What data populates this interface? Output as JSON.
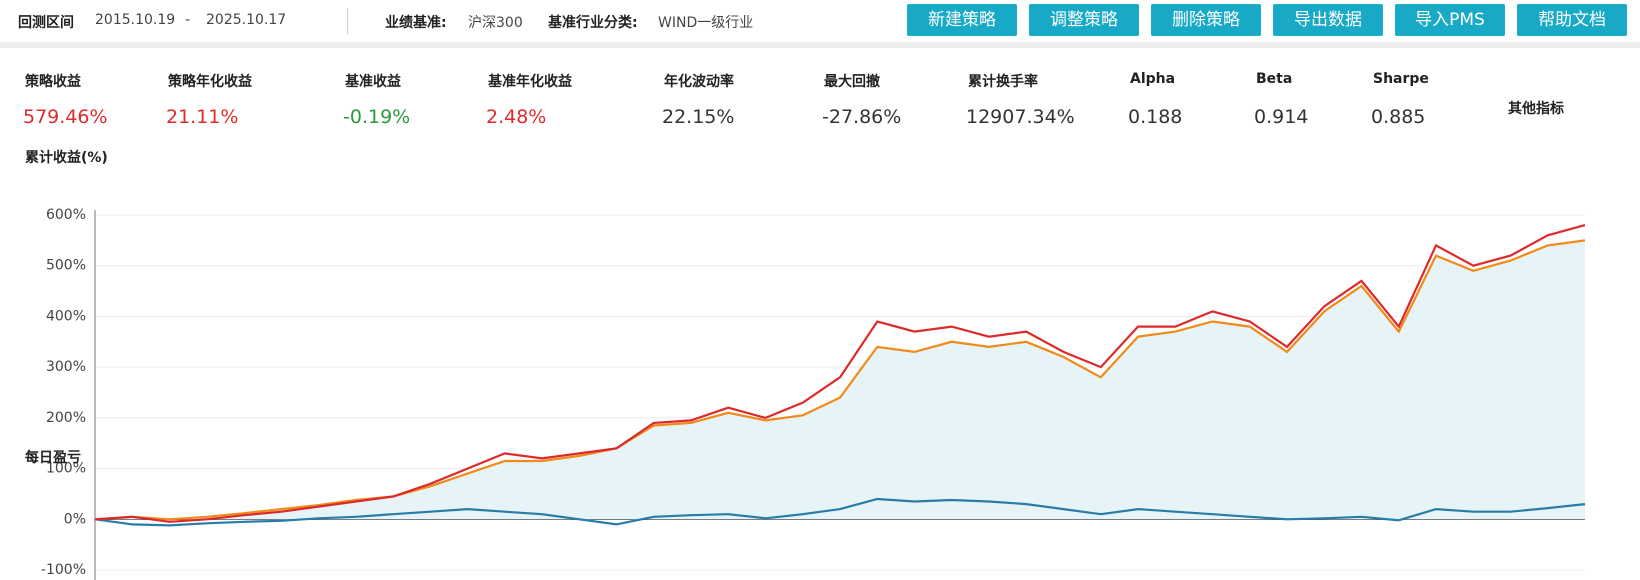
{
  "header": {
    "period_label": "回测区间",
    "start": "2015.10.19",
    "dash": "-",
    "end": "2025.10.17",
    "benchmark_label": "业绩基准:",
    "benchmark": "沪深300",
    "industry_label": "基准行业分类:",
    "industry": "WIND一级行业",
    "buttons": [
      "新建策略",
      "调整策略",
      "删除策略",
      "导出数据",
      "导入PMS",
      "帮助文档"
    ]
  },
  "metrics": [
    {
      "name": "策略收益",
      "value": "579.46%",
      "color": "#e02b2b"
    },
    {
      "name": "策略年化收益",
      "value": "21.11%",
      "color": "#e02b2b"
    },
    {
      "name": "基准收益",
      "value": "-0.19%",
      "color": "#2a9a3a"
    },
    {
      "name": "基准年化收益",
      "value": "2.48%",
      "color": "#e02b2b"
    },
    {
      "name": "年化波动率",
      "value": "22.15%",
      "color": "#333333"
    },
    {
      "name": "最大回撤",
      "value": "-27.86%",
      "color": "#333333"
    },
    {
      "name": "累计换手率",
      "value": "12907.34%",
      "color": "#333333"
    },
    {
      "name": "Alpha",
      "value": "0.188",
      "color": "#333333"
    },
    {
      "name": "Beta",
      "value": "0.914",
      "color": "#333333"
    },
    {
      "name": "Sharpe",
      "value": "0.885",
      "color": "#333333"
    }
  ],
  "other_metrics": "其他指标",
  "chart_data": {
    "type": "line",
    "title": "累计收益(%)",
    "annotation": "每日盈亏",
    "ylim": [
      -100,
      600
    ],
    "yticks": [
      {
        "value": -100,
        "label": "-100%"
      },
      {
        "value": 0,
        "label": "0%"
      },
      {
        "value": 100,
        "label": "100%"
      },
      {
        "value": 200,
        "label": "200%"
      },
      {
        "value": 300,
        "label": "300%"
      },
      {
        "value": 400,
        "label": "400%"
      },
      {
        "value": 500,
        "label": "500%"
      },
      {
        "value": 600,
        "label": "600%"
      }
    ],
    "grid": true,
    "series": [
      {
        "color": "#2a7ca8",
        "values": [
          0,
          -10,
          -12,
          -8,
          -5,
          -3,
          2,
          5,
          10,
          15,
          20,
          15,
          10,
          0,
          -10,
          5,
          8,
          10,
          2,
          10,
          20,
          40,
          35,
          38,
          35,
          30,
          20,
          10,
          20,
          15,
          10,
          5,
          0,
          2,
          5,
          -2,
          20,
          15,
          15,
          22,
          30
        ]
      },
      {
        "color": "#f28a1a",
        "fill": "#e6f3f7",
        "values": [
          0,
          5,
          0,
          5,
          12,
          20,
          28,
          38,
          45,
          65,
          90,
          115,
          115,
          125,
          140,
          185,
          190,
          210,
          195,
          205,
          240,
          340,
          330,
          350,
          340,
          350,
          320,
          280,
          360,
          370,
          390,
          380,
          330,
          410,
          460,
          370,
          520,
          490,
          510,
          540,
          550
        ]
      },
      {
        "color": "#dc2a2a",
        "values": [
          0,
          5,
          -5,
          0,
          8,
          15,
          25,
          35,
          45,
          70,
          100,
          130,
          120,
          130,
          140,
          190,
          195,
          220,
          200,
          230,
          280,
          390,
          370,
          380,
          360,
          370,
          330,
          300,
          380,
          380,
          410,
          390,
          340,
          420,
          470,
          380,
          540,
          500,
          520,
          560,
          580
        ]
      }
    ]
  }
}
